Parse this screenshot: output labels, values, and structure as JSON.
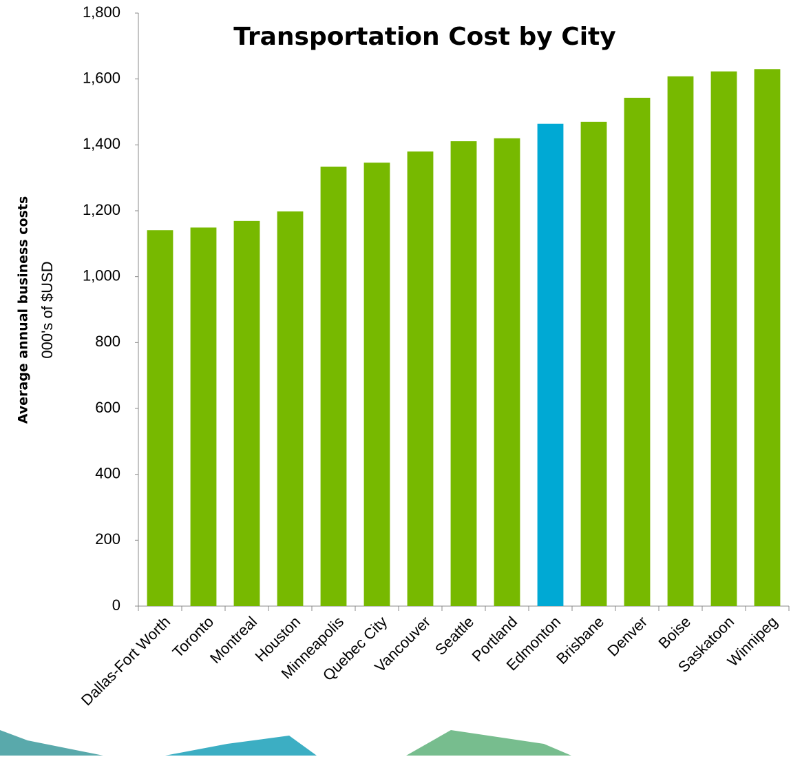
{
  "chart_data": {
    "type": "bar",
    "title": "Transportation Cost by City",
    "y_label": "Average annual business costs",
    "y_sublabel": "000's of $USD",
    "categories": [
      "Dallas-Fort Worth",
      "Toronto",
      "Montreal",
      "Houston",
      "Minneapolis",
      "Quebec City",
      "Vancouver",
      "Seattle",
      "Portland",
      "Edmonton",
      "Brisbane",
      "Denver",
      "Boise",
      "Saskatoon",
      "Winnipeg"
    ],
    "values": [
      1141,
      1149,
      1169,
      1198,
      1334,
      1346,
      1380,
      1411,
      1420,
      1464,
      1470,
      1543,
      1608,
      1623,
      1630
    ],
    "colors": [
      "#77b900",
      "#77b900",
      "#77b900",
      "#77b900",
      "#77b900",
      "#77b900",
      "#77b900",
      "#77b900",
      "#77b900",
      "#00a9d4",
      "#77b900",
      "#77b900",
      "#77b900",
      "#77b900",
      "#77b900"
    ],
    "ylim": [
      0,
      1800
    ],
    "yticks": [
      0,
      200,
      400,
      600,
      800,
      {
        "value": 1000,
        "label": "1,000"
      },
      {
        "value": 1200,
        "label": "1,200"
      },
      {
        "value": 1400,
        "label": "1,400"
      },
      {
        "value": 1600,
        "label": "1,600"
      },
      {
        "value": 1800,
        "label": "1,800"
      }
    ],
    "grid": false
  }
}
